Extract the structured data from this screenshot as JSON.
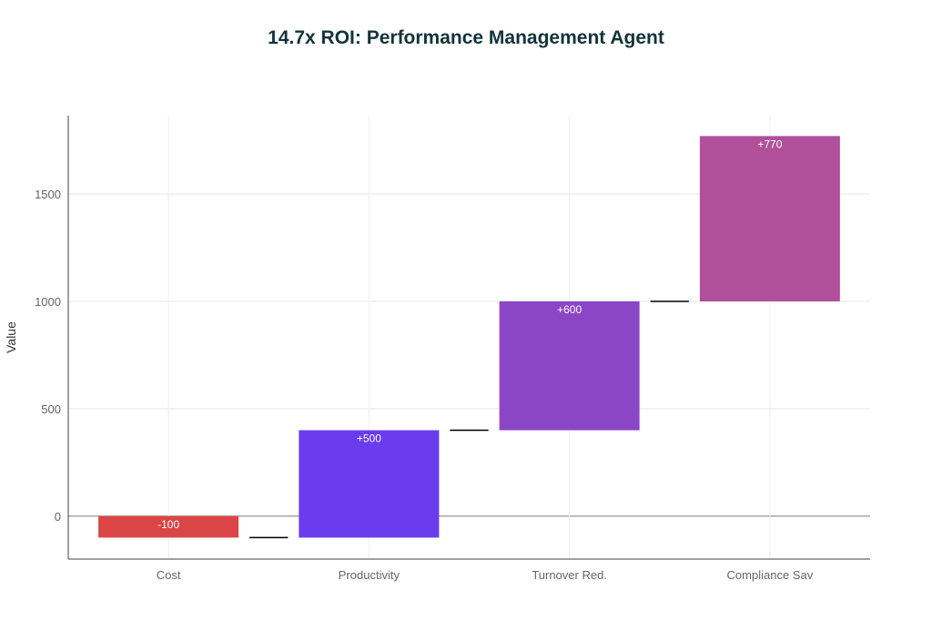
{
  "chart_data": {
    "type": "waterfall",
    "title": "14.7x ROI: Performance Management Agent",
    "xlabel": "",
    "ylabel": "Value",
    "categories": [
      "Cost",
      "Productivity",
      "Turnover Red.",
      "Compliance Sav"
    ],
    "values": [
      -100,
      500,
      600,
      770
    ],
    "labels": [
      "-100",
      "+500",
      "+600",
      "+770"
    ],
    "colors": [
      "#DB4545",
      "#6A3BEF",
      "#8B46C6",
      "#B0509A"
    ],
    "yticks": [
      0,
      500,
      1000,
      1500
    ],
    "ylim": [
      -200,
      1865
    ],
    "grid": true,
    "connector_color": "#000000"
  }
}
